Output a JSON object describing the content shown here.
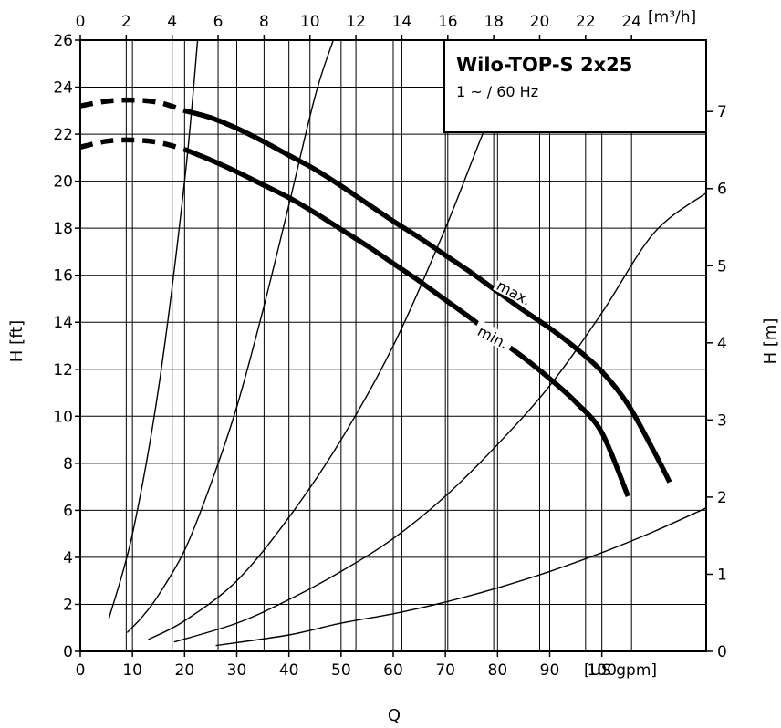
{
  "chart_data": {
    "type": "line",
    "title": "Wilo-TOP-S 2x25",
    "subtitle": "1 ~ / 60 Hz",
    "xlabel": "Q",
    "x_unit": "[US gpm]",
    "x2_unit": "[m³/h]",
    "ylabel": "H [ft]",
    "y2label": "H [m]",
    "xlim": [
      0,
      120
    ],
    "ylim": [
      0,
      26
    ],
    "x2lim": [
      0,
      27.25
    ],
    "y2lim": [
      0,
      7.925
    ],
    "grid": true,
    "legend": "top-right",
    "x_ticks": [
      0,
      10,
      20,
      30,
      40,
      50,
      60,
      70,
      80,
      90,
      100
    ],
    "x2_ticks": [
      0,
      2,
      4,
      6,
      8,
      10,
      12,
      14,
      16,
      18,
      20,
      22,
      24
    ],
    "y_ticks": [
      0,
      2,
      4,
      6,
      8,
      10,
      12,
      14,
      16,
      18,
      20,
      22,
      24,
      26
    ],
    "y2_ticks": [
      0,
      1,
      2,
      3,
      4,
      5,
      6,
      7
    ],
    "series": [
      {
        "name": "max.",
        "style": "thick",
        "dashed_until": 20,
        "x": [
          0,
          5,
          10,
          15,
          20,
          25,
          30,
          35,
          40,
          45,
          50,
          55,
          60,
          65,
          70,
          75,
          80,
          85,
          90,
          95,
          100,
          105,
          110,
          113
        ],
        "y": [
          23.2,
          23.4,
          23.45,
          23.35,
          23.0,
          22.7,
          22.25,
          21.7,
          21.1,
          20.5,
          19.8,
          19.05,
          18.3,
          17.6,
          16.85,
          16.1,
          15.3,
          14.5,
          13.75,
          12.9,
          11.9,
          10.5,
          8.5,
          7.2
        ]
      },
      {
        "name": "min.",
        "style": "thick",
        "dashed_until": 20,
        "x": [
          0,
          5,
          10,
          15,
          20,
          25,
          30,
          35,
          40,
          45,
          50,
          55,
          60,
          65,
          70,
          75,
          80,
          85,
          90,
          95,
          100,
          105
        ],
        "y": [
          21.45,
          21.7,
          21.75,
          21.65,
          21.35,
          20.9,
          20.4,
          19.85,
          19.3,
          18.65,
          17.95,
          17.25,
          16.5,
          15.75,
          14.95,
          14.15,
          13.3,
          12.5,
          11.6,
          10.6,
          9.3,
          6.6
        ]
      },
      {
        "name": "",
        "style": "thin",
        "x": [
          5.5,
          10,
          15,
          20,
          22.5
        ],
        "y": [
          1.4,
          5.0,
          11.2,
          20.0,
          26.0
        ]
      },
      {
        "name": "",
        "style": "thin",
        "x": [
          9,
          12,
          15,
          20,
          25,
          30,
          35,
          40,
          45,
          48.5
        ],
        "y": [
          0.8,
          1.5,
          2.4,
          4.3,
          7.1,
          10.4,
          14.5,
          19.0,
          23.6,
          26.0
        ]
      },
      {
        "name": "",
        "style": "thin",
        "x": [
          13,
          20,
          30,
          40,
          50,
          60,
          70,
          80,
          87
        ],
        "y": [
          0.5,
          1.3,
          3.0,
          5.7,
          9.0,
          13.0,
          18.0,
          23.5,
          26.0
        ]
      },
      {
        "name": "",
        "style": "thin",
        "x": [
          18,
          30,
          40,
          50,
          60,
          70,
          80,
          90,
          100,
          110,
          120
        ],
        "y": [
          0.4,
          1.2,
          2.2,
          3.4,
          4.8,
          6.6,
          8.8,
          11.3,
          14.4,
          17.8,
          19.5
        ]
      },
      {
        "name": "",
        "style": "thin",
        "x": [
          26,
          40,
          50,
          60,
          70,
          80,
          90,
          100,
          110,
          120
        ],
        "y": [
          0.25,
          0.7,
          1.2,
          1.6,
          2.1,
          2.7,
          3.4,
          4.2,
          5.1,
          6.1
        ]
      }
    ],
    "annotations": [
      {
        "text": "max.",
        "x": 83,
        "y": 15.2,
        "angle": 28
      },
      {
        "text": "min.",
        "x": 79,
        "y": 13.3,
        "angle": 28
      }
    ]
  }
}
